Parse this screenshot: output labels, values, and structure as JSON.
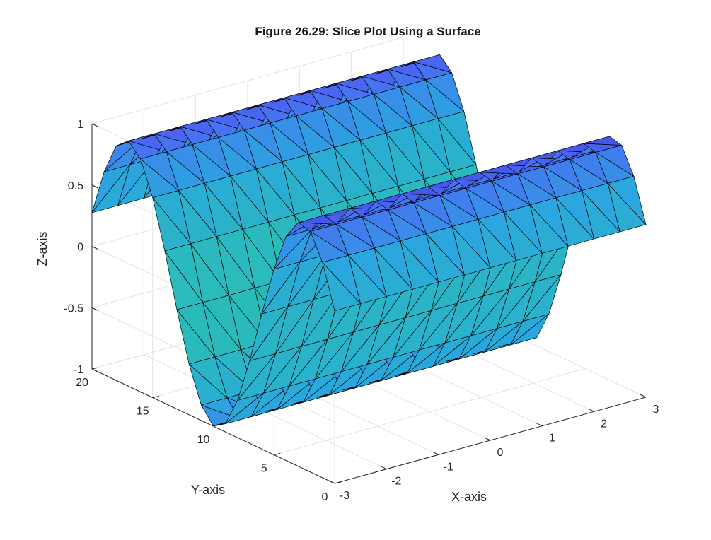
{
  "chart_data": {
    "type": "surface",
    "title": "Figure 26.29: Slice Plot Using a Surface",
    "xlabel": "X-axis",
    "ylabel": "Y-axis",
    "zlabel": "Z-axis",
    "xlim": [
      -3,
      3
    ],
    "ylim": [
      0,
      20
    ],
    "zlim": [
      -1,
      1
    ],
    "xticks": [
      -3,
      -2,
      -1,
      0,
      1,
      2,
      3
    ],
    "yticks": [
      0,
      5,
      10,
      15,
      20
    ],
    "zticks": [
      -1,
      -0.5,
      0,
      0.5,
      1
    ],
    "xtick_labels": [
      "-3",
      "-2",
      "-1",
      "0",
      "1",
      "2",
      "3"
    ],
    "ytick_labels": [
      "0",
      "5",
      "10",
      "15",
      "20"
    ],
    "ztick_labels": [
      "-1",
      "-0.5",
      "0",
      "0.5",
      "1"
    ],
    "grid": true,
    "colormap_colors": [
      "#3b36e0",
      "#4b6cf4",
      "#2aa7de",
      "#2ac6a6"
    ],
    "surface": {
      "function": "z = sin(pi * y / 7.2 + 0.42)",
      "x_grid": [
        -3,
        -2.5,
        -2,
        -1.5,
        -1,
        -0.5,
        0,
        0.5,
        1,
        1.5,
        2,
        2.5,
        3
      ],
      "y_grid": [
        0,
        1,
        2,
        3,
        4,
        5,
        6,
        7,
        8,
        9,
        10,
        11,
        12,
        13,
        14,
        15,
        16,
        17,
        18,
        19,
        20
      ],
      "z_range": [
        -1,
        1
      ],
      "triangulated": true
    }
  }
}
